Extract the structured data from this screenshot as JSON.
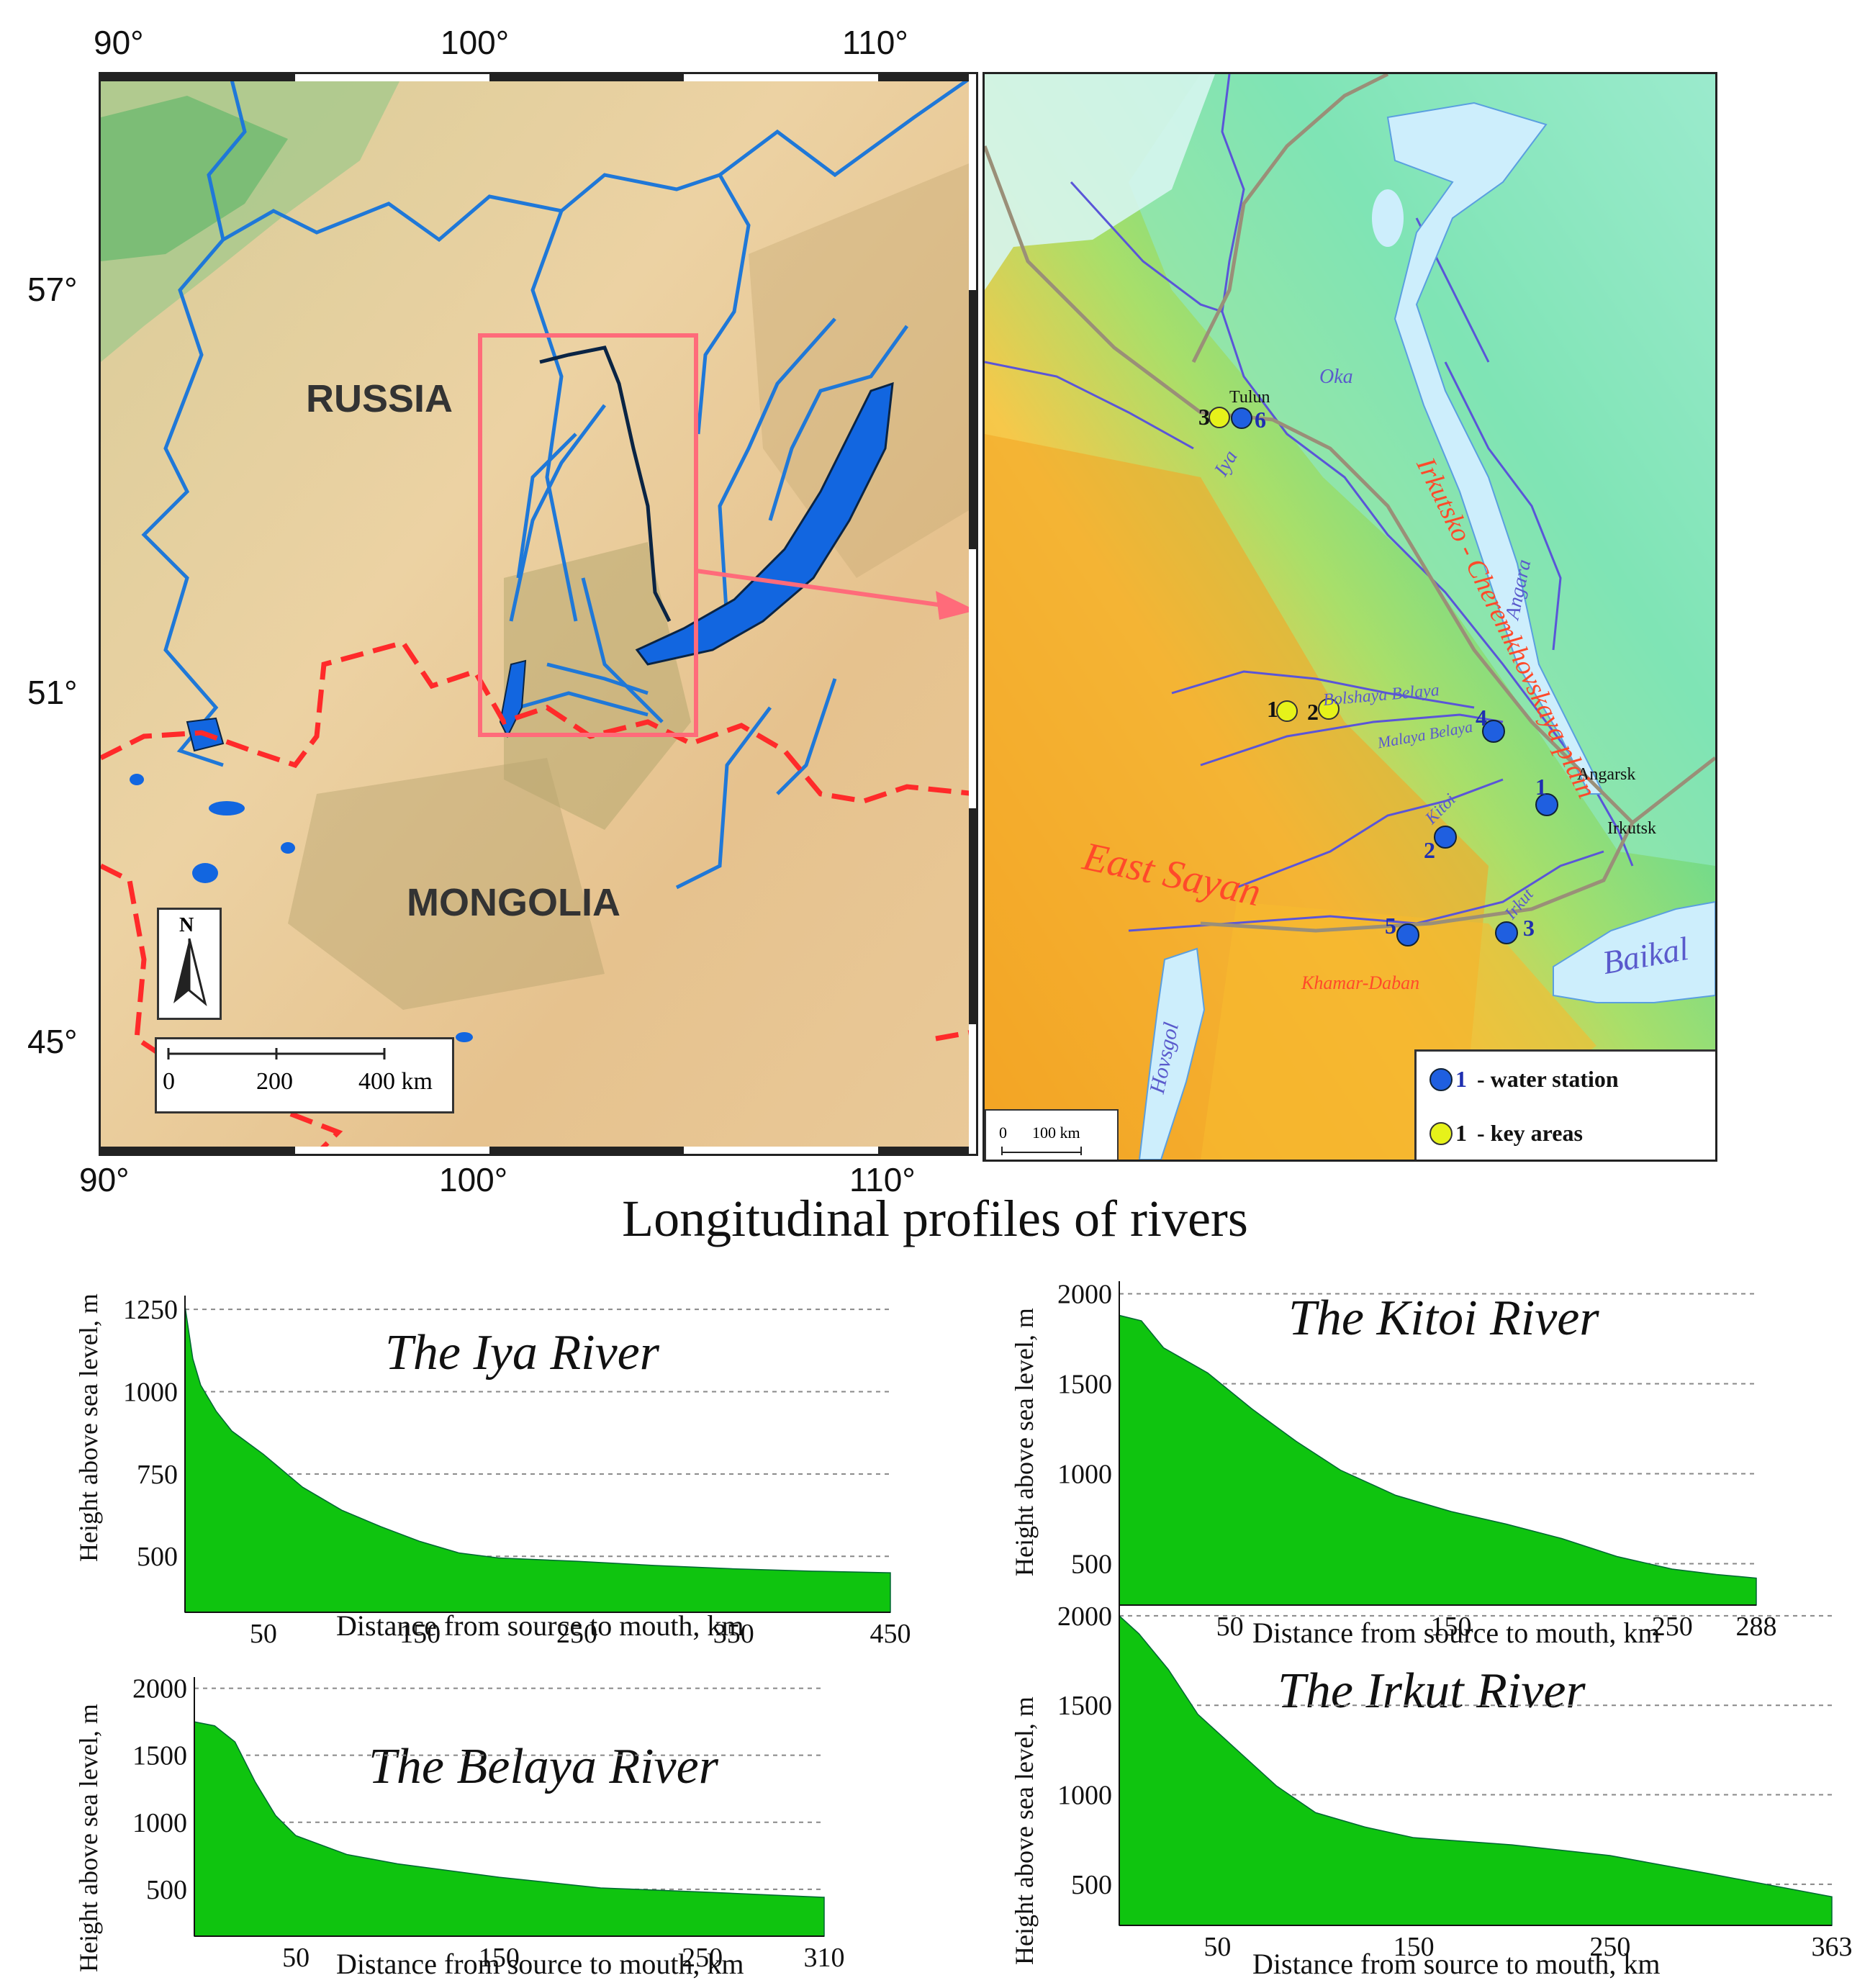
{
  "overview_map": {
    "top_lon_labels": [
      "90°",
      "100°",
      "110°"
    ],
    "bottom_lon_labels": [
      "90°",
      "100°",
      "110°"
    ],
    "lat_labels": [
      "57°",
      "51°",
      "45°"
    ],
    "country_labels": [
      "RUSSIA",
      "MONGOLIA"
    ],
    "north_label": "N",
    "scale_labels": [
      "0",
      "200",
      "400 km"
    ],
    "colors": {
      "water": "#1a73e8",
      "border": "#ff2a2a",
      "inset_box": "#ff6b7a",
      "land": "#e8c896"
    }
  },
  "detail_map": {
    "cities": [
      "Tulun",
      "Angarsk",
      "Irkutsk"
    ],
    "rivers": [
      "Oka",
      "Iya",
      "Angara",
      "Bolshaya Belaya",
      "Malaya Belaya",
      "Kitoi",
      "Irkut"
    ],
    "regions": [
      "Irkutsko - Cheremkhovskaya plain",
      "East Sayan",
      "Khamar-Daban"
    ],
    "lakes": [
      "Baikal",
      "Hovsgol"
    ],
    "water_stations": [
      "1",
      "2",
      "3",
      "4",
      "5",
      "6"
    ],
    "key_areas": [
      "1",
      "2",
      "3"
    ],
    "legend": [
      {
        "marker": "1",
        "text": "- water station",
        "color": "#1f5fe0"
      },
      {
        "marker": "1",
        "text": "- key areas",
        "color": "#e6f21a"
      }
    ],
    "scale_labels": [
      "0",
      "100 km"
    ]
  },
  "profiles_title": "Longitudinal profiles of rivers",
  "chart_data": [
    {
      "type": "area",
      "title": "The Iya  River",
      "xlabel": "Distance from source to mouth, km",
      "ylabel": "Height above sea level, m",
      "xlim": [
        0,
        450
      ],
      "ylim": [
        330,
        1270
      ],
      "xticks": [
        "50",
        "150",
        "250",
        "350",
        "450"
      ],
      "yticks": [
        "500",
        "750",
        "1000",
        "1250"
      ],
      "x": [
        0,
        5,
        10,
        20,
        30,
        50,
        75,
        100,
        125,
        150,
        175,
        200,
        250,
        300,
        350,
        400,
        450
      ],
      "values": [
        1260,
        1100,
        1020,
        940,
        880,
        810,
        710,
        640,
        590,
        545,
        510,
        495,
        485,
        472,
        462,
        455,
        450
      ]
    },
    {
      "type": "area",
      "title": "The Kitoi River",
      "xlabel": "Distance from source to mouth, km",
      "ylabel": "Height above sea level, m",
      "xlim": [
        0,
        288
      ],
      "ylim": [
        270,
        2030
      ],
      "xticks": [
        "50",
        "150",
        "250",
        "288"
      ],
      "yticks": [
        "500",
        "1000",
        "1500",
        "2000"
      ],
      "x": [
        0,
        10,
        20,
        40,
        60,
        80,
        100,
        125,
        150,
        175,
        200,
        225,
        250,
        270,
        288
      ],
      "values": [
        1880,
        1850,
        1700,
        1560,
        1360,
        1180,
        1020,
        880,
        790,
        720,
        640,
        540,
        470,
        440,
        420
      ]
    },
    {
      "type": "area",
      "title": "The Belaya River",
      "xlabel": "Distance from source to mouth, km",
      "ylabel": "Height above sea level, m",
      "xlim": [
        0,
        310
      ],
      "ylim": [
        150,
        2030
      ],
      "xticks": [
        "50",
        "150",
        "250",
        "310"
      ],
      "yticks": [
        "500",
        "1000",
        "1500",
        "2000"
      ],
      "x": [
        0,
        10,
        20,
        30,
        40,
        50,
        75,
        100,
        150,
        200,
        250,
        310
      ],
      "values": [
        1750,
        1720,
        1600,
        1300,
        1050,
        900,
        760,
        690,
        590,
        510,
        480,
        440
      ]
    },
    {
      "type": "area",
      "title": "The Irkut River",
      "xlabel": "Distance from source to mouth, km",
      "ylabel": "Height above sea level, m",
      "xlim": [
        0,
        363
      ],
      "ylim": [
        270,
        2060
      ],
      "xticks": [
        "50",
        "150",
        "250",
        "363"
      ],
      "yticks": [
        "500",
        "1000",
        "1500",
        "2000"
      ],
      "x": [
        0,
        10,
        25,
        40,
        60,
        80,
        100,
        125,
        150,
        175,
        200,
        250,
        300,
        363
      ],
      "values": [
        2000,
        1900,
        1700,
        1450,
        1250,
        1050,
        900,
        820,
        760,
        740,
        720,
        660,
        560,
        430
      ]
    }
  ]
}
